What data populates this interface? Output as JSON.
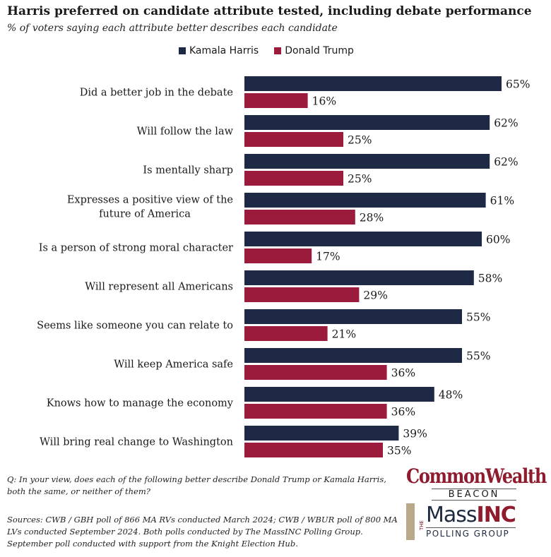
{
  "title": "Harris preferred on candidate attribute tested, including debate performance",
  "subtitle": "% of voters saying each attribute better describes each candidate",
  "colors": {
    "harris": "#1e2a45",
    "trump": "#9b1b3d"
  },
  "chart_data": {
    "type": "bar",
    "orientation": "horizontal",
    "categories": [
      "Did a better job in the debate",
      "Will follow the law",
      "Is mentally sharp",
      "Expresses a positive view of the future of America",
      "Is a person of strong moral character",
      "Will represent all Americans",
      "Seems like someone you can relate to",
      "Will keep America safe",
      "Knows how to manage the economy",
      "Will bring real change to Washington"
    ],
    "series": [
      {
        "name": "Kamala Harris",
        "values": [
          65,
          62,
          62,
          61,
          60,
          58,
          55,
          55,
          48,
          39
        ]
      },
      {
        "name": "Donald Trump",
        "values": [
          16,
          25,
          25,
          28,
          17,
          29,
          21,
          36,
          36,
          35
        ]
      }
    ],
    "value_suffix": "%",
    "xlim": [
      0,
      100
    ],
    "legend_position": "top",
    "grid": false
  },
  "notes": {
    "question": "Q: In your view, does each of the following better describe Donald Trump or Kamala Harris, both the same, or neither of them?",
    "sources": "Sources: CWB / GBH poll of 866 MA RVs conducted March 2024; CWB / WBUR poll of 800 MA LVs conducted September 2024. Both polls conducted by The MassINC Polling Group. September poll conducted with support from the Knight Election Hub."
  },
  "logo": {
    "commonwealth": "CommonWealth",
    "beacon": "BEACON",
    "the": "THE",
    "mass": "Mass",
    "inc": "INC",
    "polling_group": "POLLING GROUP"
  }
}
